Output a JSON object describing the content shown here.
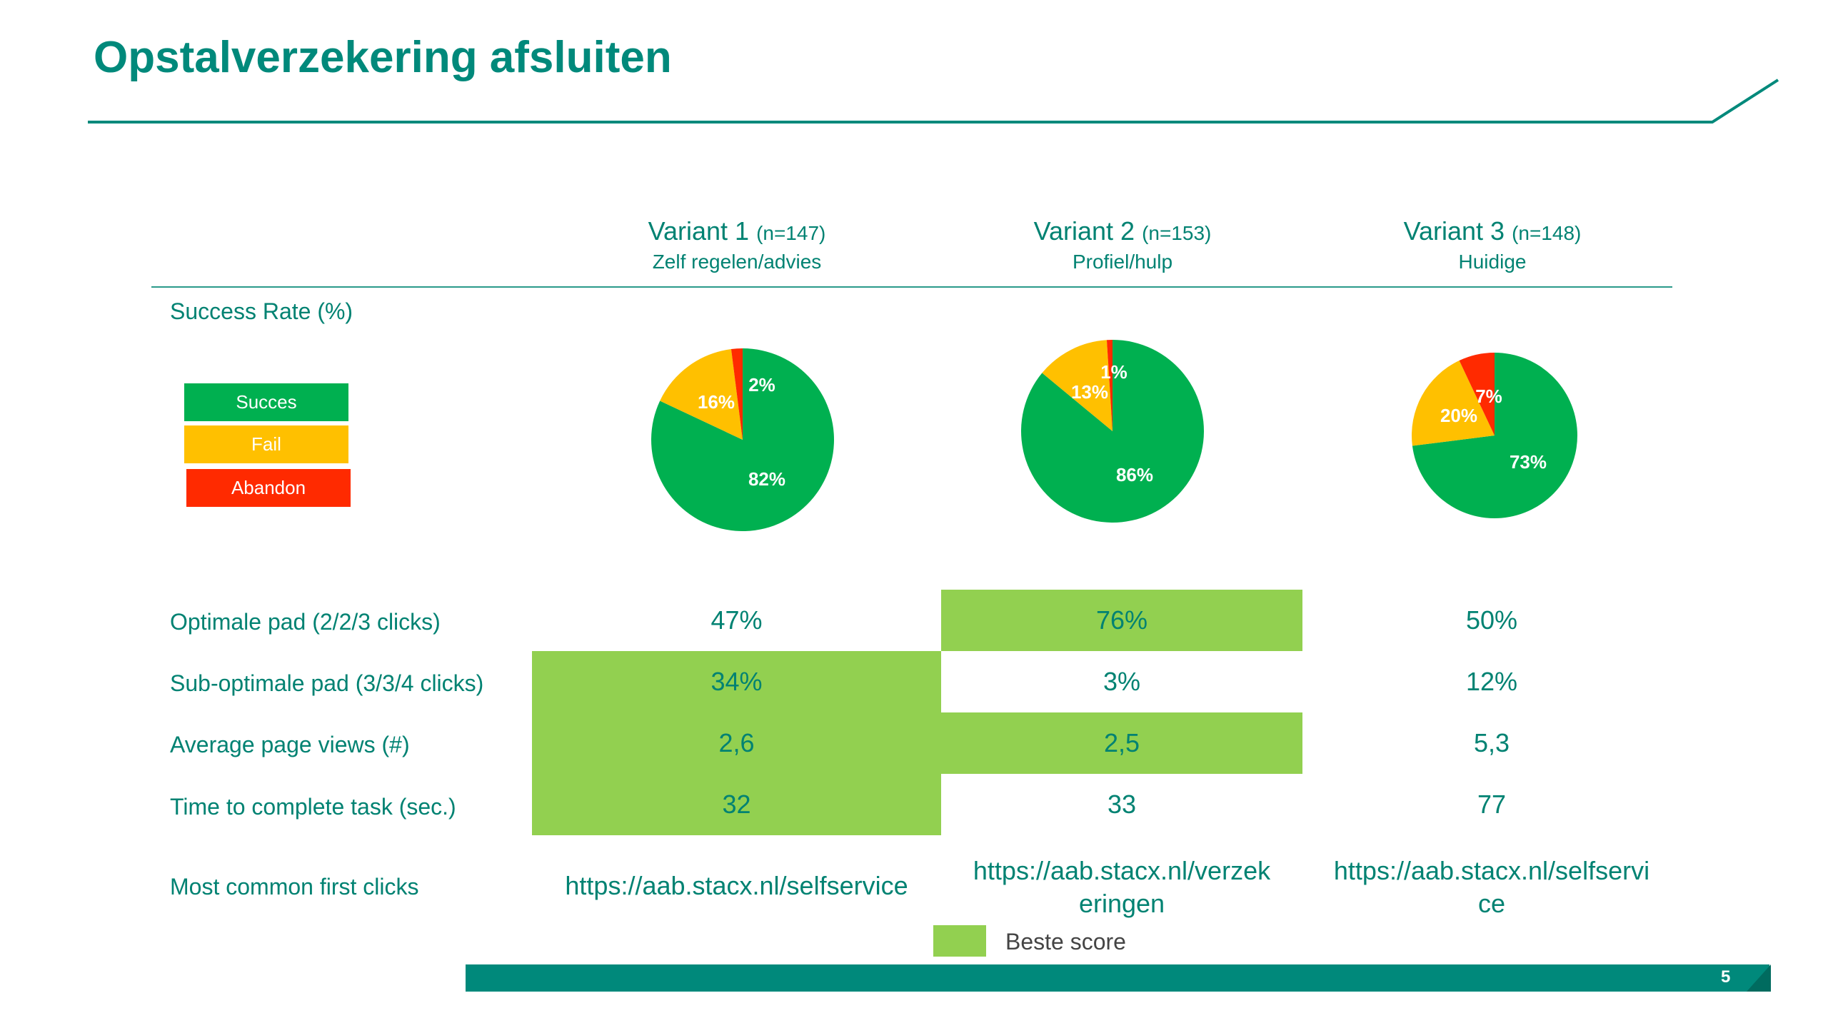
{
  "title": "Opstalverzekering afsluiten",
  "columns": [
    {
      "name": "Variant 1",
      "n": "(n=147)",
      "subtitle": "Zelf regelen/advies"
    },
    {
      "name": "Variant 2",
      "n": "(n=153)",
      "subtitle": "Profiel/hulp"
    },
    {
      "name": "Variant 3",
      "n": "(n=148)",
      "subtitle": "Huidige"
    }
  ],
  "success_rate_label": "Success Rate (%)",
  "legend": {
    "succes": "Succes",
    "fail": "Fail",
    "abandon": "Abandon"
  },
  "colors": {
    "succes": "#00b050",
    "fail": "#ffc000",
    "abandon": "#ff2a00",
    "best": "#92d050",
    "accent": "#00897b"
  },
  "chart_data": [
    {
      "type": "pie",
      "categories": [
        "Succes",
        "Fail",
        "Abandon"
      ],
      "values": [
        82,
        16,
        2
      ],
      "labels": [
        "82%",
        "16%",
        "2%"
      ]
    },
    {
      "type": "pie",
      "categories": [
        "Succes",
        "Fail",
        "Abandon"
      ],
      "values": [
        86,
        13,
        1
      ],
      "labels": [
        "86%",
        "13%",
        "1%"
      ]
    },
    {
      "type": "pie",
      "categories": [
        "Succes",
        "Fail",
        "Abandon"
      ],
      "values": [
        73,
        20,
        7
      ],
      "labels": [
        "73%",
        "20%",
        "7%"
      ]
    }
  ],
  "metrics": [
    {
      "label": "Optimale pad (2/2/3 clicks)",
      "values": [
        "47%",
        "76%",
        "50%"
      ],
      "best": [
        false,
        true,
        false
      ]
    },
    {
      "label": "Sub-optimale pad (3/3/4 clicks)",
      "values": [
        "34%",
        "3%",
        "12%"
      ],
      "best": [
        true,
        false,
        false
      ]
    },
    {
      "label": "Average page views (#)",
      "values": [
        "2,6",
        "2,5",
        "5,3"
      ],
      "best": [
        true,
        true,
        false
      ]
    },
    {
      "label": "Time to complete task (sec.)",
      "values": [
        "32",
        "33",
        "77"
      ],
      "best": [
        true,
        false,
        false
      ]
    }
  ],
  "first_clicks": {
    "label": "Most common first clicks",
    "values": [
      [
        "https://aab.stacx.nl/selfservice"
      ],
      [
        "https://aab.stacx.nl/verzek",
        "eringen"
      ],
      [
        "https://aab.stacx.nl/selfservi",
        "ce"
      ]
    ]
  },
  "best_score_label": "Beste score",
  "page_number": "5"
}
